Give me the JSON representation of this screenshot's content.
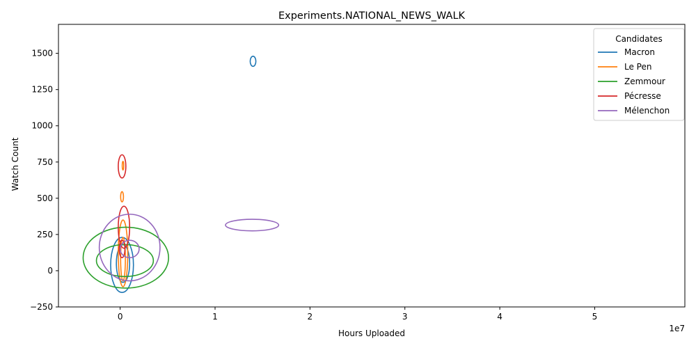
{
  "chart_data": {
    "type": "contour",
    "title": "Experiments.NATIONAL_NEWS_WALK",
    "xlabel": "Hours Uploaded",
    "ylabel": "Watch Count",
    "x_offset_label": "1e7",
    "xlim": [
      -0.65,
      5.95
    ],
    "ylim": [
      -250,
      1700
    ],
    "x_ticks": [
      0,
      1,
      2,
      3,
      4,
      5
    ],
    "y_ticks": [
      -250,
      0,
      250,
      500,
      750,
      1000,
      1250,
      1500
    ],
    "grid": false,
    "legend": {
      "title": "Candidates",
      "position": "top-right",
      "entries": [
        "Macron",
        "Le Pen",
        "Zemmour",
        "Pécresse",
        "Mélenchon"
      ]
    },
    "series": [
      {
        "name": "Macron",
        "color": "#1f77b4",
        "contours": [
          {
            "cx": 0.02,
            "cy": 40,
            "rx": 0.12,
            "ry": 190,
            "angle": 0
          },
          {
            "cx": 0.03,
            "cy": 50,
            "rx": 0.07,
            "ry": 130,
            "angle": 0
          },
          {
            "cx": 1.4,
            "cy": 1445,
            "rx": 0.03,
            "ry": 35,
            "angle": 0
          }
        ]
      },
      {
        "name": "Le Pen",
        "color": "#ff7f0e",
        "contours": [
          {
            "cx": 0.02,
            "cy": 510,
            "rx": 0.015,
            "ry": 35,
            "angle": 0
          },
          {
            "cx": 0.03,
            "cy": 725,
            "rx": 0.008,
            "ry": 30,
            "angle": 0
          },
          {
            "cx": 0.03,
            "cy": 120,
            "rx": 0.05,
            "ry": 230,
            "angle": 0
          },
          {
            "cx": 0.03,
            "cy": 80,
            "rx": 0.025,
            "ry": 150,
            "angle": 0
          }
        ]
      },
      {
        "name": "Zemmour",
        "color": "#2ca02c",
        "contours": [
          {
            "cx": 0.06,
            "cy": 90,
            "rx": 0.45,
            "ry": 210,
            "angle": 0
          },
          {
            "cx": 0.05,
            "cy": 70,
            "rx": 0.3,
            "ry": 110,
            "angle": 0
          }
        ]
      },
      {
        "name": "Pécresse",
        "color": "#d62728",
        "contours": [
          {
            "cx": 0.02,
            "cy": 720,
            "rx": 0.04,
            "ry": 80,
            "angle": 0
          },
          {
            "cx": 0.04,
            "cy": 300,
            "rx": 0.06,
            "ry": 145,
            "angle": 0
          },
          {
            "cx": 0.02,
            "cy": 150,
            "rx": 0.03,
            "ry": 60,
            "angle": 0
          }
        ]
      },
      {
        "name": "Mélenchon",
        "color": "#9467bd",
        "contours": [
          {
            "cx": 0.1,
            "cy": 160,
            "rx": 0.32,
            "ry": 230,
            "angle": 0
          },
          {
            "cx": 0.1,
            "cy": 150,
            "rx": 0.1,
            "ry": 60,
            "angle": 0
          },
          {
            "cx": 1.39,
            "cy": 315,
            "rx": 0.28,
            "ry": 40,
            "angle": 0
          }
        ]
      }
    ]
  }
}
